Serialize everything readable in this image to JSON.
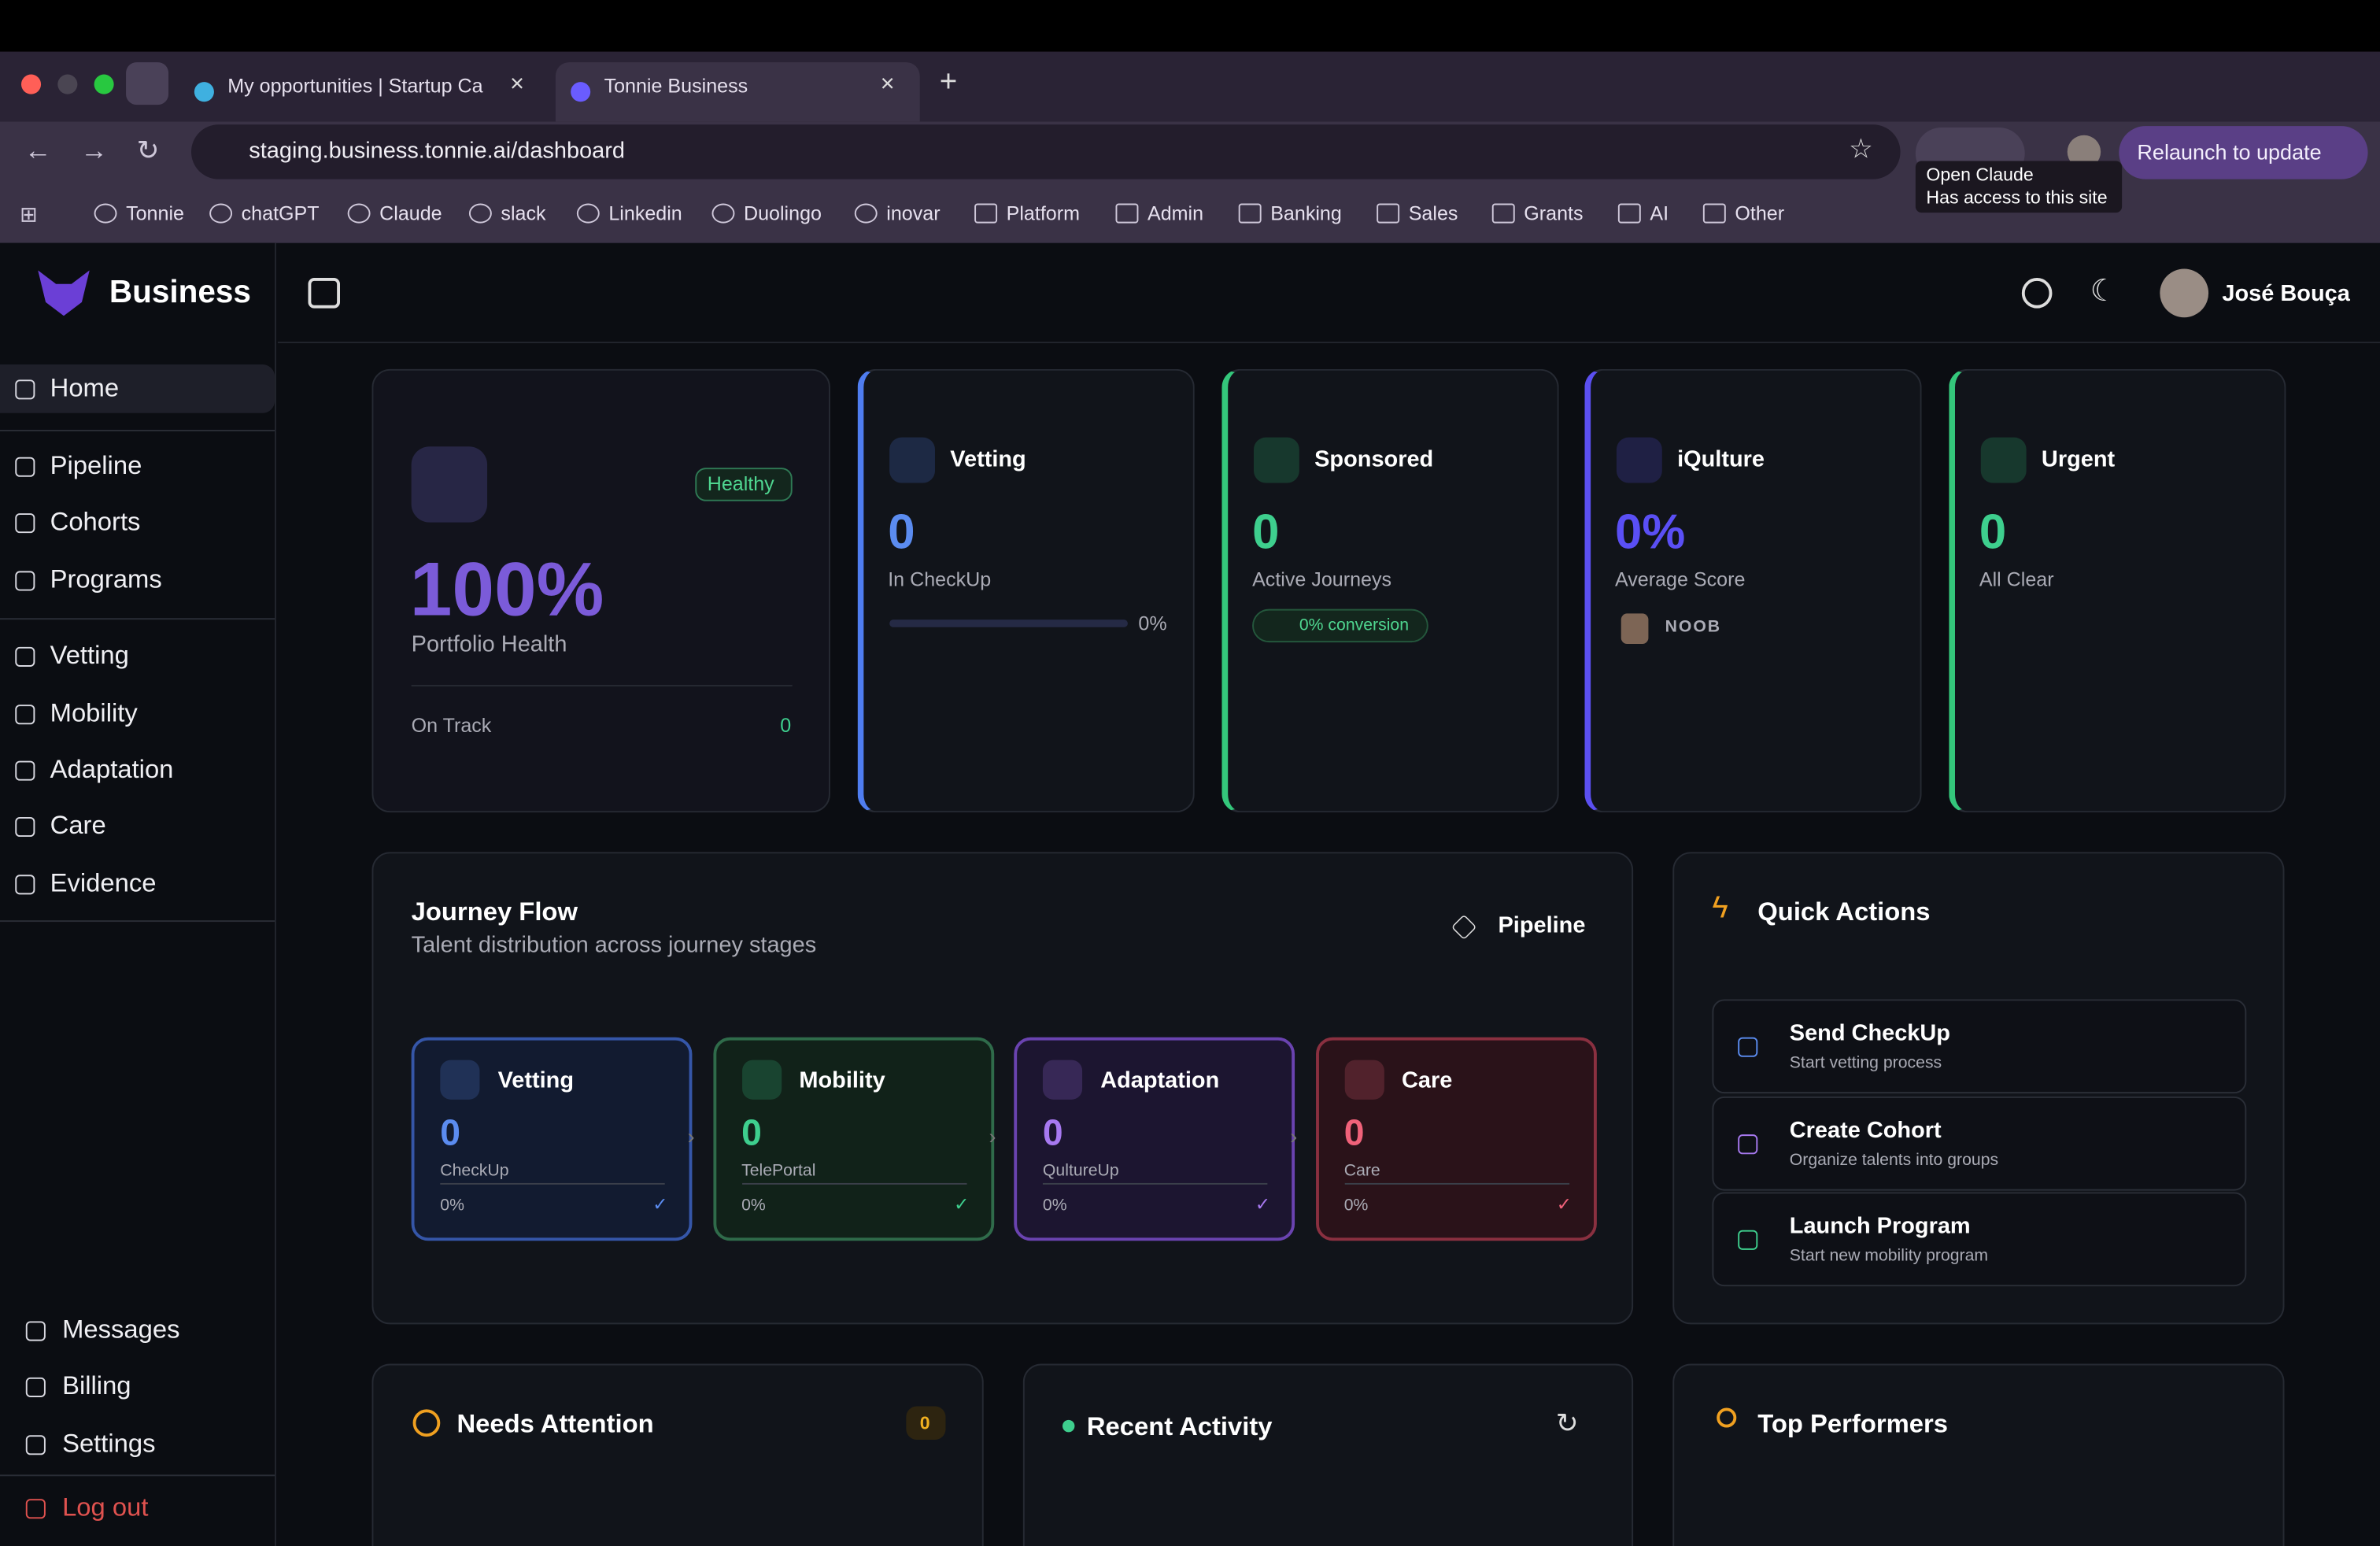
{
  "browser": {
    "tabs": [
      "My opportunities | Startup Ca",
      "Tonnie Business"
    ],
    "url": "staging.business.tonnie.ai/dashboard",
    "relaunch": "Relaunch to update",
    "tooltip": [
      "Open Claude",
      "Has access to this site"
    ],
    "bookmarks": [
      "Tonnie",
      "chatGPT",
      "Claude",
      "slack",
      "Linkedin",
      "Duolingo",
      "inovar",
      "Platform",
      "Admin",
      "Banking",
      "Sales",
      "Grants",
      "AI",
      "Other"
    ]
  },
  "sidebar": {
    "brand": "Business",
    "nav_groups": [
      [
        "Home"
      ],
      [
        "Pipeline",
        "Cohorts",
        "Programs"
      ],
      [
        "Vetting",
        "Mobility",
        "Adaptation",
        "Care",
        "Evidence"
      ]
    ],
    "bottom": [
      "Messages",
      "Billing",
      "Settings"
    ],
    "logout": "Log out"
  },
  "header": {
    "user": "José Bouça"
  },
  "health": {
    "badge": "Healthy",
    "value": "100%",
    "label": "Portfolio Health",
    "footer_label": "On Track",
    "footer_value": "0"
  },
  "stats": [
    {
      "title": "Vetting",
      "value": "0",
      "label": "In CheckUp",
      "extra": "0%"
    },
    {
      "title": "Sponsored",
      "value": "0",
      "label": "Active Journeys",
      "extra": "0% conversion"
    },
    {
      "title": "iQulture",
      "value": "0%",
      "label": "Average Score",
      "extra": "NOOB"
    },
    {
      "title": "Urgent",
      "value": "0",
      "label": "All Clear"
    }
  ],
  "journey": {
    "title": "Journey Flow",
    "subtitle": "Talent distribution across journey stages",
    "button": "Pipeline",
    "stages": [
      {
        "title": "Vetting",
        "value": "0",
        "label": "CheckUp",
        "pct": "0%"
      },
      {
        "title": "Mobility",
        "value": "0",
        "label": "TelePortal",
        "pct": "0%"
      },
      {
        "title": "Adaptation",
        "value": "0",
        "label": "QultureUp",
        "pct": "0%"
      },
      {
        "title": "Care",
        "value": "0",
        "label": "Care",
        "pct": "0%"
      }
    ]
  },
  "quick_actions": {
    "title": "Quick Actions",
    "items": [
      {
        "title": "Send CheckUp",
        "subtitle": "Start vetting process"
      },
      {
        "title": "Create Cohort",
        "subtitle": "Organize talents into groups"
      },
      {
        "title": "Launch Program",
        "subtitle": "Start new mobility program"
      }
    ]
  },
  "needs_attention": {
    "title": "Needs Attention",
    "count": "0"
  },
  "recent_activity": {
    "title": "Recent Activity"
  },
  "top_performers": {
    "title": "Top Performers"
  }
}
